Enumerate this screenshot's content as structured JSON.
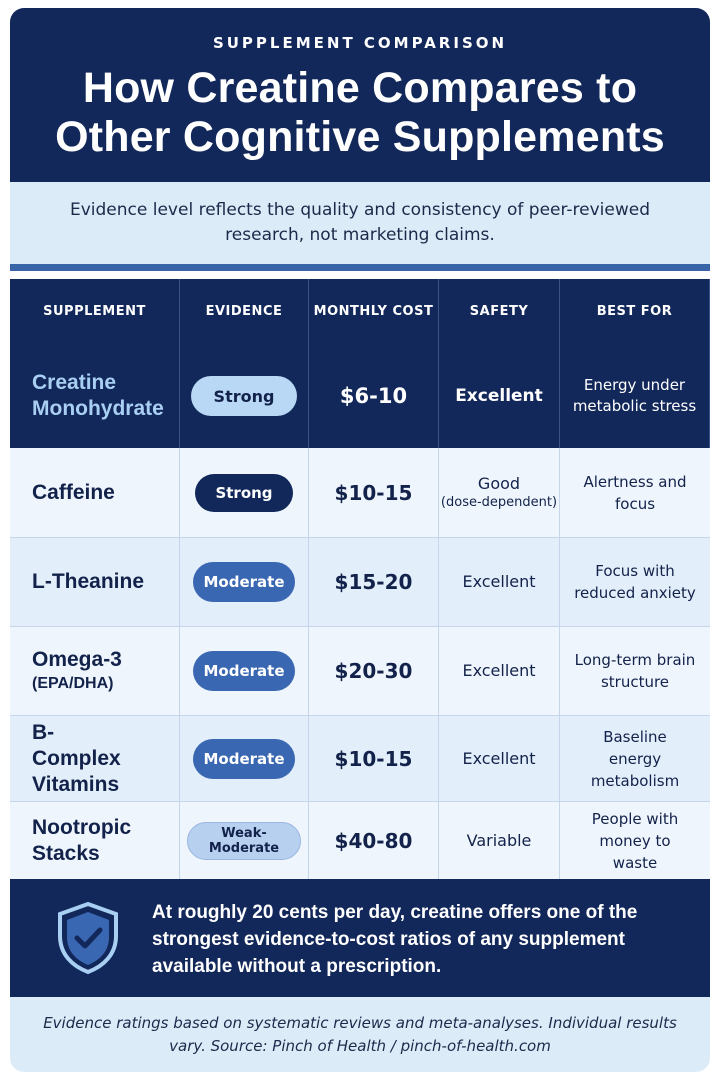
{
  "header": {
    "eyebrow": "SUPPLEMENT COMPARISON",
    "title_line1": "How Creatine Compares to",
    "title_line2": "Other Cognitive Supplements"
  },
  "intro": {
    "text": "Evidence level reflects the quality and consistency of peer-reviewed research, not marketing claims."
  },
  "table": {
    "headers": [
      "SUPPLEMENT",
      "EVIDENCE",
      "MONTHLY COST",
      "SAFETY",
      "BEST FOR"
    ],
    "rows": [
      {
        "name": "Creatine Monohydrate",
        "name_sub": "",
        "evidence": "Strong",
        "cost": "$6-10",
        "safety": "Excellent",
        "safety_sub": "",
        "best_for": "Energy under metabolic stress"
      },
      {
        "name": "Caffeine",
        "name_sub": "",
        "evidence": "Strong",
        "cost": "$10-15",
        "safety": "Good",
        "safety_sub": "(dose-dependent)",
        "best_for": "Alertness and focus"
      },
      {
        "name": "L-Theanine",
        "name_sub": "",
        "evidence": "Moderate",
        "cost": "$15-20",
        "safety": "Excellent",
        "safety_sub": "",
        "best_for": "Focus with reduced anxiety"
      },
      {
        "name": "Omega-3",
        "name_sub": "(EPA/DHA)",
        "evidence": "Moderate",
        "cost": "$20-30",
        "safety": "Excellent",
        "safety_sub": "",
        "best_for": "Long-term brain structure"
      },
      {
        "name": "B-Complex Vitamins",
        "name_sub": "",
        "evidence": "Moderate",
        "cost": "$10-15",
        "safety": "Excellent",
        "safety_sub": "",
        "best_for": "Baseline energy metabolism"
      },
      {
        "name": "Nootropic Stacks",
        "name_sub": "",
        "evidence": "Weak-Moderate",
        "cost": "$40-80",
        "safety": "Variable",
        "safety_sub": "",
        "best_for": "People with money to waste"
      }
    ]
  },
  "callout": {
    "icon": "shield-check-icon",
    "text": "At roughly 20 cents per day, creatine offers one of the strongest evidence-to-cost ratios of any supplement available without a prescription."
  },
  "footer": {
    "text": "Evidence ratings based on systematic reviews and meta-analyses. Individual results vary. Source: Pinch of Health / pinch-of-health.com"
  },
  "colors": {
    "navy": "#13285a",
    "accent_blue": "#3a67b2",
    "light_blue": "#dcebf8",
    "highlight": "#a9cff3"
  }
}
